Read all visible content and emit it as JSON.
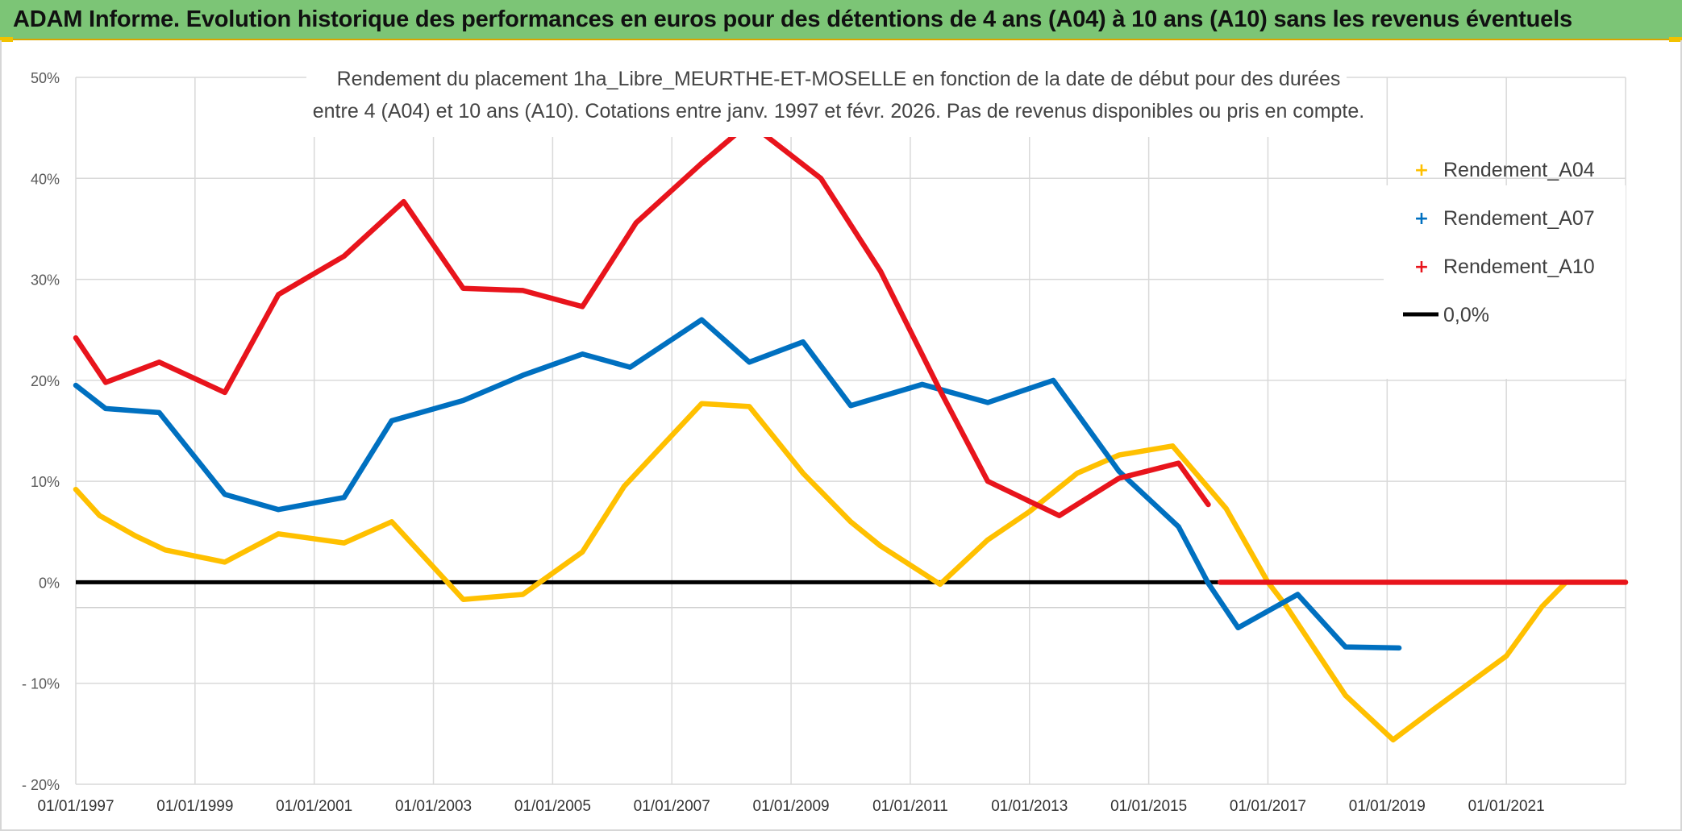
{
  "header": {
    "title": "ADAM Informe. Evolution historique des performances en euros pour des détentions de 4 ans (A04) à 10 ans (A10) sans les revenus éventuels"
  },
  "colors": {
    "header_bg": "#7cc576",
    "A04": "#ffc000",
    "A07": "#0070c0",
    "A10": "#e8141c",
    "zero": "#000000",
    "grid": "#d9d9d9"
  },
  "chart_data": {
    "type": "line",
    "title_line1": "Rendement du placement 1ha_Libre_MEURTHE-ET-MOSELLE en fonction de la date de début pour des durées",
    "title_line2": "entre 4 (A04) et 10 ans (A10). Cotations entre janv. 1997 et févr. 2026. Pas de revenus disponibles ou pris en compte.",
    "x_tick_labels": [
      "01/01/1997",
      "01/01/1999",
      "01/01/2001",
      "01/01/2003",
      "01/01/2005",
      "01/01/2007",
      "01/01/2009",
      "01/01/2011",
      "01/01/2013",
      "01/01/2015",
      "01/01/2017",
      "01/01/2019",
      "01/01/2021"
    ],
    "y_tick_labels": [
      "50%",
      "40%",
      "30%",
      "20%",
      "10%",
      "0%",
      "- 10%",
      "- 20%"
    ],
    "y_ticks": [
      50,
      40,
      30,
      20,
      10,
      0,
      -10,
      -20
    ],
    "xlim": [
      1997.0,
      2023.0
    ],
    "ylim": [
      -20,
      50
    ],
    "series": [
      {
        "name": "Rendement_A04",
        "points": [
          [
            1997.0,
            9.2
          ],
          [
            1997.4,
            6.6
          ],
          [
            1998.0,
            4.6
          ],
          [
            1998.5,
            3.2
          ],
          [
            1999.5,
            2.0
          ],
          [
            2000.4,
            4.8
          ],
          [
            2001.5,
            3.9
          ],
          [
            2002.3,
            6.0
          ],
          [
            2003.5,
            -1.7
          ],
          [
            2004.5,
            -1.2
          ],
          [
            2005.5,
            3.0
          ],
          [
            2006.2,
            9.5
          ],
          [
            2007.5,
            17.7
          ],
          [
            2008.3,
            17.4
          ],
          [
            2009.2,
            10.8
          ],
          [
            2010.0,
            6.0
          ],
          [
            2010.5,
            3.6
          ],
          [
            2011.5,
            -0.2
          ],
          [
            2012.3,
            4.2
          ],
          [
            2013.0,
            7.0
          ],
          [
            2013.8,
            10.8
          ],
          [
            2014.5,
            12.6
          ],
          [
            2015.4,
            13.5
          ],
          [
            2016.3,
            7.3
          ],
          [
            2017.0,
            0.0
          ],
          [
            2017.3,
            -2.3
          ],
          [
            2018.3,
            -11.2
          ],
          [
            2019.1,
            -15.6
          ],
          [
            2019.8,
            -12.5
          ],
          [
            2021.0,
            -7.3
          ],
          [
            2021.6,
            -2.4
          ],
          [
            2022.0,
            0.0
          ],
          [
            2023.0,
            0.0
          ]
        ]
      },
      {
        "name": "Rendement_A07",
        "points": [
          [
            1997.0,
            19.5
          ],
          [
            1997.5,
            17.2
          ],
          [
            1998.4,
            16.8
          ],
          [
            1999.5,
            8.7
          ],
          [
            2000.4,
            7.2
          ],
          [
            2001.5,
            8.4
          ],
          [
            2002.3,
            16.0
          ],
          [
            2003.5,
            18.0
          ],
          [
            2004.5,
            20.5
          ],
          [
            2005.5,
            22.6
          ],
          [
            2006.3,
            21.3
          ],
          [
            2007.5,
            26.0
          ],
          [
            2008.3,
            21.8
          ],
          [
            2009.2,
            23.8
          ],
          [
            2010.0,
            17.5
          ],
          [
            2011.2,
            19.6
          ],
          [
            2012.3,
            17.8
          ],
          [
            2013.4,
            20.0
          ],
          [
            2014.5,
            11.0
          ],
          [
            2015.5,
            5.5
          ],
          [
            2016.0,
            -0.1
          ],
          [
            2016.5,
            -4.5
          ],
          [
            2017.5,
            -1.2
          ],
          [
            2018.3,
            -6.4
          ],
          [
            2019.2,
            -6.5
          ]
        ]
      },
      {
        "name": "Rendement_A10",
        "points": [
          [
            1997.0,
            24.2
          ],
          [
            1997.5,
            19.8
          ],
          [
            1998.4,
            21.8
          ],
          [
            1999.5,
            18.8
          ],
          [
            2000.4,
            28.5
          ],
          [
            2001.5,
            32.3
          ],
          [
            2002.5,
            37.7
          ],
          [
            2003.5,
            29.1
          ],
          [
            2004.5,
            28.9
          ],
          [
            2005.5,
            27.3
          ],
          [
            2006.4,
            35.6
          ],
          [
            2007.5,
            41.5
          ],
          [
            2008.3,
            45.5
          ],
          [
            2009.5,
            40.0
          ],
          [
            2010.5,
            30.8
          ],
          [
            2011.5,
            19.0
          ],
          [
            2012.3,
            10.0
          ],
          [
            2013.5,
            6.6
          ],
          [
            2014.5,
            10.3
          ],
          [
            2015.5,
            11.8
          ],
          [
            2016.0,
            7.7
          ]
        ]
      },
      {
        "name": "Rendement_A10_zero",
        "points": [
          [
            2016.2,
            0.0
          ],
          [
            2023.0,
            0.0
          ]
        ]
      }
    ],
    "zero_line_label": "0,0%",
    "legend": [
      "Rendement_A04",
      "Rendement_A07",
      "Rendement_A10",
      "0,0%"
    ],
    "legend_position": "top-right",
    "grid": true
  }
}
